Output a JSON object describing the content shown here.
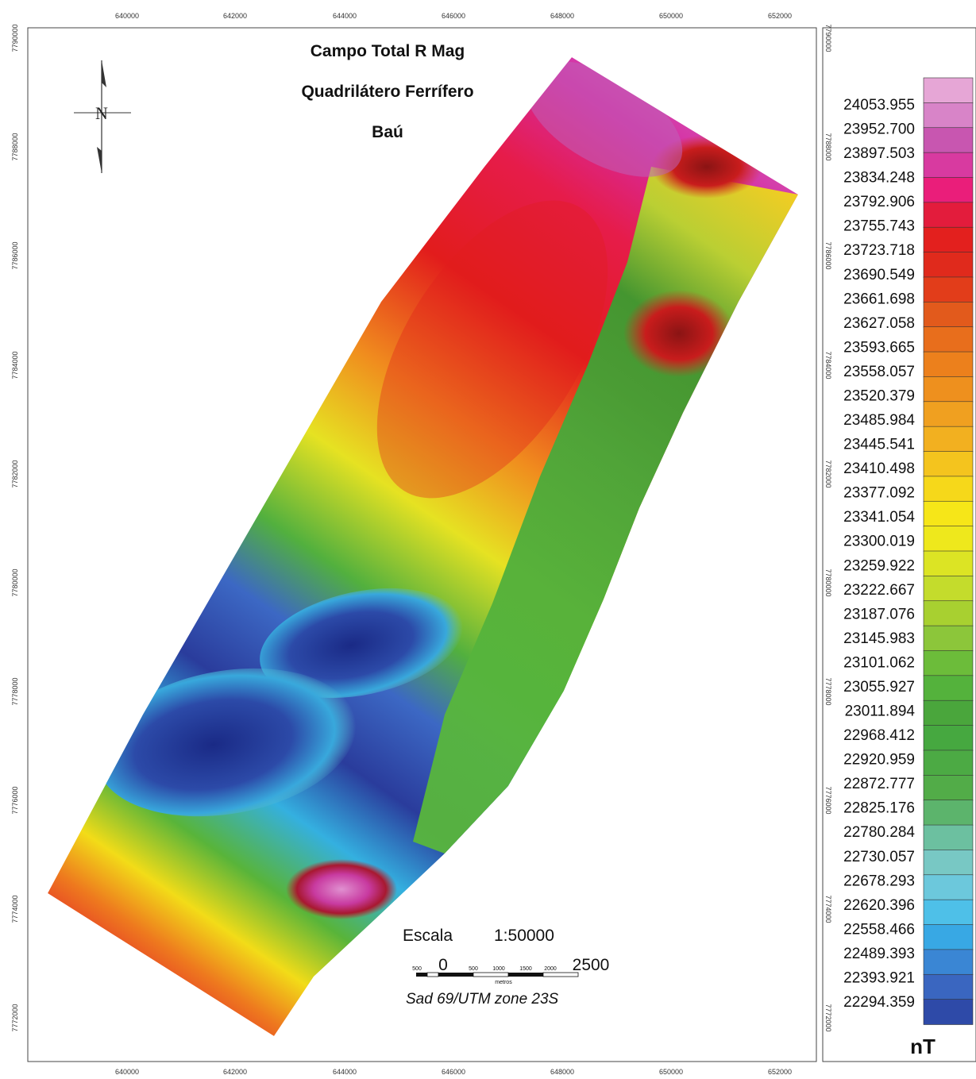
{
  "map": {
    "title_lines": [
      "Campo Total  R Mag",
      "Quadrilátero Ferrífero",
      "Baú"
    ],
    "x_ticks": [
      "640000",
      "642000",
      "644000",
      "646000",
      "648000",
      "650000",
      "652000"
    ],
    "y_ticks": [
      "7790000",
      "7788000",
      "7786000",
      "7784000",
      "7782000",
      "7780000",
      "7778000",
      "7776000",
      "7774000",
      "7772000"
    ],
    "scale_label": "Escala",
    "scale_ratio": "1:50000",
    "scale_values": [
      "500",
      "0",
      "500",
      "1000",
      "1500",
      "2000",
      "2500"
    ],
    "scale_units": "metros",
    "datum": "Sad 69/UTM zone 23S",
    "compass_letter": "N"
  },
  "legend": {
    "unit": "nT",
    "values": [
      "24053.955",
      "23952.700",
      "23897.503",
      "23834.248",
      "23792.906",
      "23755.743",
      "23723.718",
      "23690.549",
      "23661.698",
      "23627.058",
      "23593.665",
      "23558.057",
      "23520.379",
      "23485.984",
      "23445.541",
      "23410.498",
      "23377.092",
      "23341.054",
      "23300.019",
      "23259.922",
      "23222.667",
      "23187.076",
      "23145.983",
      "23101.062",
      "23055.927",
      "23011.894",
      "22968.412",
      "22920.959",
      "22872.777",
      "22825.176",
      "22780.284",
      "22730.057",
      "22678.293",
      "22620.396",
      "22558.466",
      "22489.393",
      "22393.921",
      "22294.359"
    ],
    "colors": [
      "#e6a6d6",
      "#d884c8",
      "#c856b0",
      "#d83aa0",
      "#ea1e7a",
      "#e31c3c",
      "#e3201e",
      "#e02a1c",
      "#e23d1a",
      "#e25a1c",
      "#e86e1c",
      "#ec801c",
      "#ee901e",
      "#f0a020",
      "#f2b020",
      "#f4c41e",
      "#f6d81a",
      "#f6e618",
      "#eee81c",
      "#dce424",
      "#c4dc2c",
      "#a8d030",
      "#8cc63a",
      "#6cbc3a",
      "#54b23c",
      "#4aa63c",
      "#46a840",
      "#4caa44",
      "#52ac48",
      "#5cb46c",
      "#6cc0a0",
      "#78c8c4",
      "#6cc8dc",
      "#4ec0e8",
      "#38a8e4",
      "#3a86d4",
      "#3a66c0",
      "#2e4aa8"
    ]
  }
}
